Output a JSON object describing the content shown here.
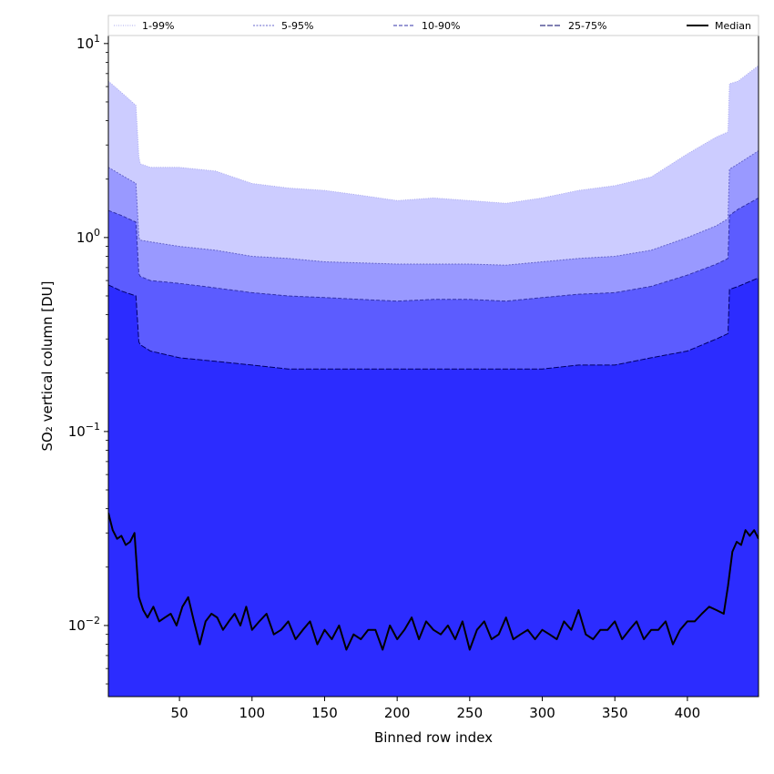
{
  "chart_data": {
    "type": "area",
    "title": "",
    "xlabel": "Binned row index",
    "ylabel": "SO₂ vertical column [DU]",
    "yscale": "log",
    "xlim": [
      1,
      449
    ],
    "ylim": [
      0.0043,
      11
    ],
    "grid": false,
    "legend_placement": "top",
    "x_ticks": [
      50,
      100,
      150,
      200,
      250,
      300,
      350,
      400
    ],
    "y_ticks": [
      {
        "value": 0.01,
        "base": "10",
        "exp": "−2"
      },
      {
        "value": 0.1,
        "base": "10",
        "exp": "−1"
      },
      {
        "value": 1,
        "base": "10",
        "exp": "0"
      },
      {
        "value": 10,
        "base": "10",
        "exp": "1"
      }
    ],
    "x": [
      1,
      10,
      20,
      22,
      23,
      30,
      50,
      75,
      100,
      125,
      150,
      175,
      200,
      225,
      250,
      275,
      300,
      325,
      350,
      375,
      400,
      420,
      428,
      429,
      435,
      449
    ],
    "bands": [
      {
        "name": "1-99%",
        "fill": "#ccccff",
        "line": "#aaaaee",
        "dash": "1,1.5",
        "lower": [
          0.0043,
          0.0043,
          0.0043,
          0.0043,
          0.0043,
          0.0043,
          0.0043,
          0.0043,
          0.0043,
          0.0043,
          0.0043,
          0.0043,
          0.0043,
          0.0043,
          0.0043,
          0.0043,
          0.0043,
          0.0043,
          0.0043,
          0.0043,
          0.0043,
          0.0043,
          0.0043,
          0.0043,
          0.0043,
          0.0043
        ],
        "upper": [
          6.4,
          5.6,
          4.8,
          2.6,
          2.4,
          2.3,
          2.3,
          2.2,
          1.9,
          1.8,
          1.75,
          1.65,
          1.55,
          1.6,
          1.55,
          1.5,
          1.6,
          1.75,
          1.85,
          2.05,
          2.7,
          3.3,
          3.5,
          6.2,
          6.4,
          7.7
        ]
      },
      {
        "name": "5-95%",
        "fill": "#9999ff",
        "line": "#6666cc",
        "dash": "2,1.5",
        "lower": [
          0.0043,
          0.0043,
          0.0043,
          0.0043,
          0.0043,
          0.0043,
          0.0043,
          0.0043,
          0.0043,
          0.0043,
          0.0043,
          0.0043,
          0.0043,
          0.0043,
          0.0043,
          0.0043,
          0.0043,
          0.0043,
          0.0043,
          0.0043,
          0.0043,
          0.0043,
          0.0043,
          0.0043,
          0.0043,
          0.0043
        ],
        "upper": [
          2.3,
          2.1,
          1.9,
          1.0,
          0.97,
          0.95,
          0.9,
          0.86,
          0.8,
          0.78,
          0.75,
          0.74,
          0.73,
          0.73,
          0.73,
          0.72,
          0.75,
          0.78,
          0.8,
          0.86,
          1.0,
          1.15,
          1.25,
          2.25,
          2.4,
          2.8
        ]
      },
      {
        "name": "10-90%",
        "fill": "#5c5cff",
        "line": "#3333aa",
        "dash": "4,2",
        "lower": [
          0.0043,
          0.0043,
          0.0043,
          0.0043,
          0.0043,
          0.0043,
          0.0043,
          0.0043,
          0.0043,
          0.0043,
          0.0043,
          0.0043,
          0.0043,
          0.0043,
          0.0043,
          0.0043,
          0.0043,
          0.0043,
          0.0043,
          0.0043,
          0.0043,
          0.0043,
          0.0043,
          0.0043,
          0.0043,
          0.0043
        ],
        "upper": [
          1.38,
          1.3,
          1.2,
          0.65,
          0.63,
          0.6,
          0.58,
          0.55,
          0.52,
          0.5,
          0.49,
          0.48,
          0.47,
          0.48,
          0.48,
          0.47,
          0.49,
          0.51,
          0.52,
          0.56,
          0.64,
          0.73,
          0.78,
          1.3,
          1.4,
          1.6
        ]
      },
      {
        "name": "25-75%",
        "fill": "#2c2cff",
        "line": "#000066",
        "dash": "6,2",
        "lower": [
          0.0043,
          0.0043,
          0.0043,
          0.0043,
          0.0043,
          0.0043,
          0.0043,
          0.0043,
          0.0043,
          0.0043,
          0.0043,
          0.0043,
          0.0043,
          0.0043,
          0.0043,
          0.0043,
          0.0043,
          0.0043,
          0.0043,
          0.0043,
          0.0043,
          0.0043,
          0.0043,
          0.0043,
          0.0043,
          0.0043
        ],
        "upper": [
          0.57,
          0.53,
          0.5,
          0.29,
          0.28,
          0.26,
          0.24,
          0.23,
          0.22,
          0.21,
          0.21,
          0.21,
          0.21,
          0.21,
          0.21,
          0.21,
          0.21,
          0.22,
          0.22,
          0.24,
          0.26,
          0.3,
          0.32,
          0.54,
          0.56,
          0.62
        ]
      }
    ],
    "median": {
      "name": "Median",
      "color": "#000000",
      "x": [
        1,
        4,
        7,
        10,
        13,
        16,
        19,
        22,
        25,
        28,
        32,
        36,
        40,
        44,
        48,
        52,
        56,
        60,
        64,
        68,
        72,
        76,
        80,
        84,
        88,
        92,
        96,
        100,
        105,
        110,
        115,
        120,
        125,
        130,
        135,
        140,
        145,
        150,
        155,
        160,
        165,
        170,
        175,
        180,
        185,
        190,
        195,
        200,
        205,
        210,
        215,
        220,
        225,
        230,
        235,
        240,
        245,
        250,
        255,
        260,
        265,
        270,
        275,
        280,
        285,
        290,
        295,
        300,
        305,
        310,
        315,
        320,
        325,
        330,
        335,
        340,
        345,
        350,
        355,
        360,
        365,
        370,
        375,
        380,
        385,
        390,
        395,
        400,
        405,
        410,
        415,
        420,
        425,
        428,
        431,
        434,
        437,
        440,
        443,
        446,
        449
      ],
      "y": [
        0.038,
        0.031,
        0.028,
        0.029,
        0.026,
        0.027,
        0.03,
        0.014,
        0.012,
        0.011,
        0.0125,
        0.0105,
        0.011,
        0.0115,
        0.01,
        0.0125,
        0.014,
        0.0105,
        0.008,
        0.0105,
        0.0115,
        0.011,
        0.0095,
        0.0105,
        0.0115,
        0.01,
        0.0125,
        0.0095,
        0.0105,
        0.0115,
        0.009,
        0.0095,
        0.0105,
        0.0085,
        0.0095,
        0.0105,
        0.008,
        0.0095,
        0.0085,
        0.01,
        0.0075,
        0.009,
        0.0085,
        0.0095,
        0.0095,
        0.0075,
        0.01,
        0.0085,
        0.0095,
        0.011,
        0.0085,
        0.0105,
        0.0095,
        0.009,
        0.01,
        0.0085,
        0.0105,
        0.0075,
        0.0095,
        0.0105,
        0.0085,
        0.009,
        0.011,
        0.0085,
        0.009,
        0.0095,
        0.0085,
        0.0095,
        0.009,
        0.0085,
        0.0105,
        0.0095,
        0.012,
        0.009,
        0.0085,
        0.0095,
        0.0095,
        0.0105,
        0.0085,
        0.0095,
        0.0105,
        0.0085,
        0.0095,
        0.0095,
        0.0105,
        0.008,
        0.0095,
        0.0105,
        0.0105,
        0.0115,
        0.0125,
        0.012,
        0.0115,
        0.016,
        0.024,
        0.027,
        0.026,
        0.031,
        0.029,
        0.031,
        0.028
      ]
    }
  }
}
